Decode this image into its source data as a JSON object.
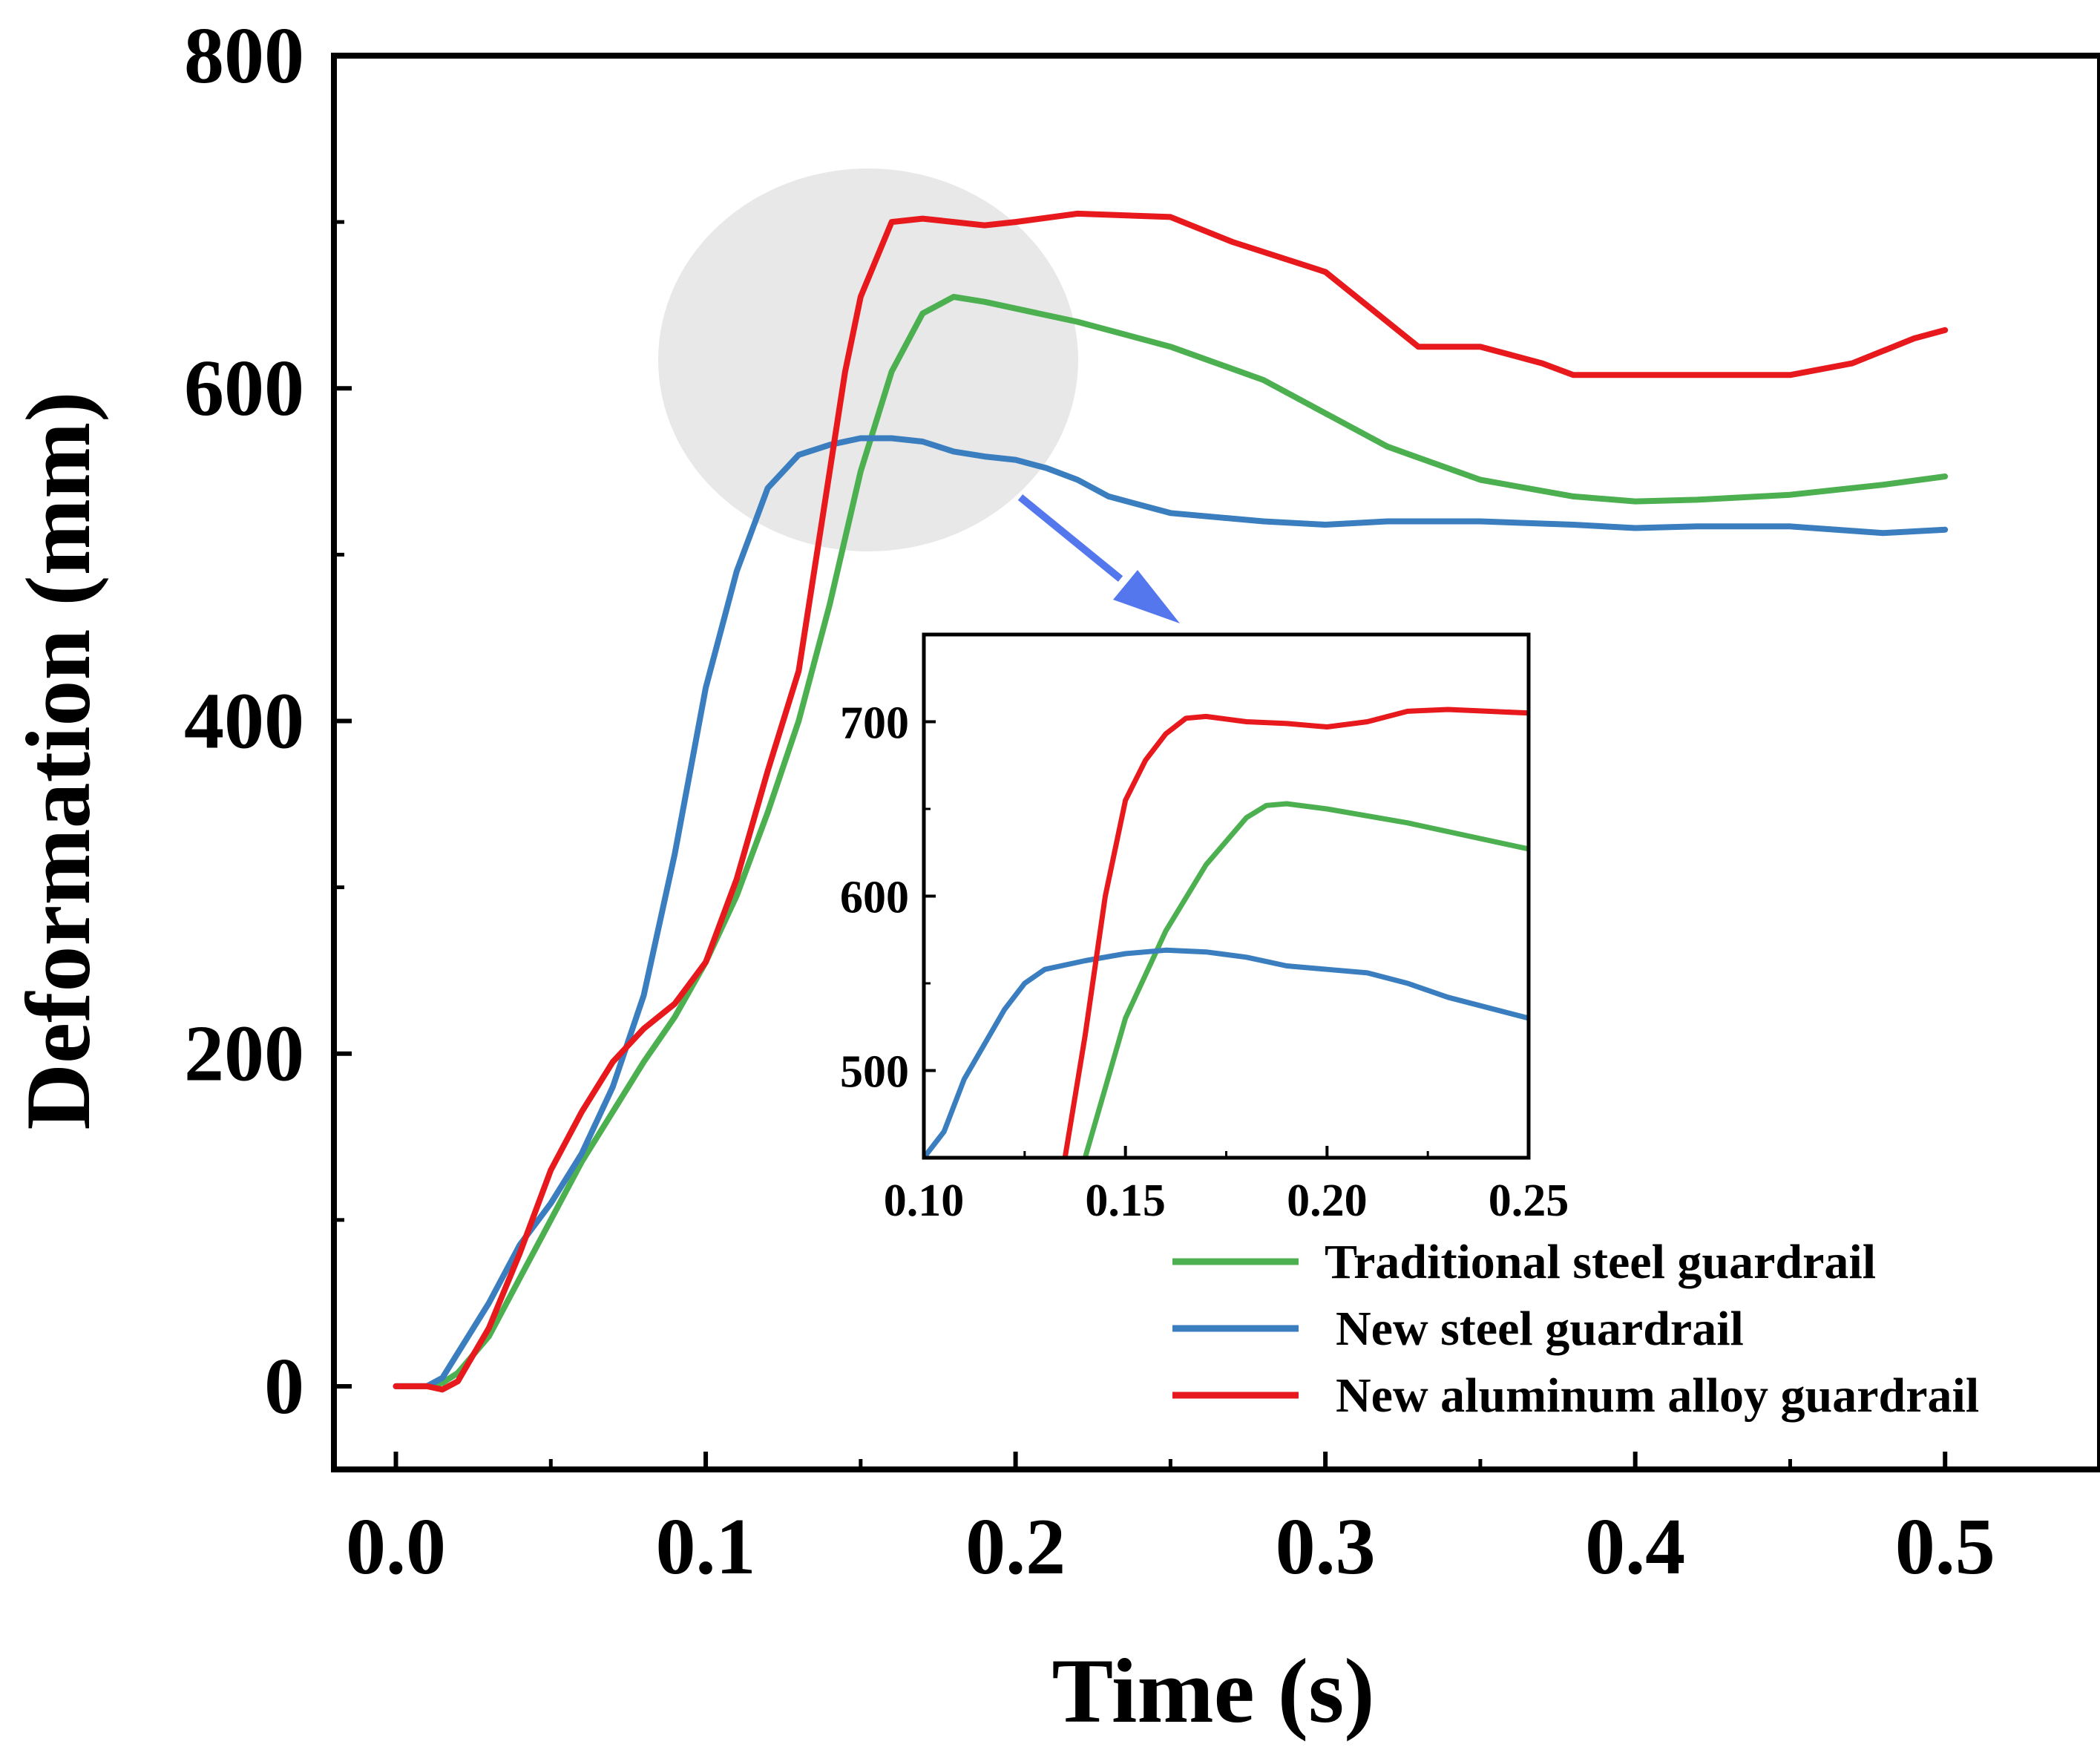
{
  "chart_data": [
    {
      "type": "line",
      "role": "main",
      "title": "",
      "xlabel": "Time (s)",
      "ylabel": "Deformation (mm)",
      "xlim": [
        -0.02,
        0.55
      ],
      "ylim": [
        -50,
        800
      ],
      "xticks": [
        0.0,
        0.1,
        0.2,
        0.3,
        0.4,
        0.5
      ],
      "xtick_labels": [
        "0.0",
        "0.1",
        "0.2",
        "0.3",
        "0.4",
        "0.5"
      ],
      "yticks": [
        0,
        200,
        400,
        600,
        800
      ],
      "ytick_labels": [
        "0",
        "200",
        "400",
        "600",
        "800"
      ],
      "grid": false,
      "legend_position": "bottom-right",
      "series": [
        {
          "name": "Traditional steel guardrail",
          "color": "#4caf50",
          "x": [
            0,
            0.01,
            0.015,
            0.02,
            0.03,
            0.04,
            0.05,
            0.06,
            0.07,
            0.08,
            0.09,
            0.1,
            0.11,
            0.12,
            0.13,
            0.14,
            0.15,
            0.16,
            0.17,
            0.18,
            0.19,
            0.2,
            0.22,
            0.25,
            0.28,
            0.3,
            0.32,
            0.35,
            0.38,
            0.4,
            0.42,
            0.45,
            0.48,
            0.5
          ],
          "values": [
            0,
            0,
            2,
            8,
            30,
            65,
            100,
            135,
            165,
            195,
            222,
            255,
            295,
            345,
            400,
            470,
            550,
            610,
            645,
            655,
            652,
            648,
            640,
            625,
            605,
            585,
            565,
            545,
            535,
            532,
            533,
            536,
            542,
            547
          ]
        },
        {
          "name": "New steel guardrail",
          "color": "#3a7ebf",
          "x": [
            0,
            0.01,
            0.015,
            0.02,
            0.03,
            0.04,
            0.05,
            0.06,
            0.07,
            0.08,
            0.09,
            0.1,
            0.11,
            0.12,
            0.13,
            0.14,
            0.15,
            0.16,
            0.17,
            0.18,
            0.19,
            0.2,
            0.21,
            0.22,
            0.23,
            0.25,
            0.28,
            0.3,
            0.32,
            0.35,
            0.38,
            0.4,
            0.42,
            0.45,
            0.48,
            0.5
          ],
          "values": [
            0,
            0,
            5,
            20,
            50,
            85,
            110,
            140,
            180,
            235,
            320,
            420,
            490,
            540,
            560,
            566,
            570,
            570,
            568,
            562,
            559,
            557,
            552,
            545,
            535,
            525,
            520,
            518,
            520,
            520,
            518,
            516,
            517,
            517,
            513,
            515
          ]
        },
        {
          "name": "New aluminum alloy guardrail",
          "color": "#e8191c",
          "x": [
            0,
            0.01,
            0.015,
            0.02,
            0.03,
            0.04,
            0.05,
            0.06,
            0.07,
            0.08,
            0.09,
            0.1,
            0.11,
            0.12,
            0.13,
            0.14,
            0.145,
            0.15,
            0.16,
            0.17,
            0.18,
            0.19,
            0.2,
            0.22,
            0.25,
            0.27,
            0.3,
            0.31,
            0.33,
            0.35,
            0.37,
            0.38,
            0.4,
            0.42,
            0.45,
            0.47,
            0.49,
            0.5
          ],
          "values": [
            0,
            0,
            -2,
            3,
            35,
            80,
            130,
            165,
            195,
            215,
            230,
            255,
            305,
            370,
            430,
            550,
            610,
            655,
            700,
            702,
            700,
            698,
            700,
            705,
            703,
            688,
            670,
            655,
            625,
            625,
            615,
            608,
            608,
            608,
            608,
            615,
            630,
            635
          ]
        }
      ]
    },
    {
      "type": "line",
      "role": "inset",
      "title": "",
      "xlabel": "",
      "ylabel": "",
      "xlim": [
        0.1,
        0.25
      ],
      "ylim": [
        450,
        750
      ],
      "xticks": [
        0.1,
        0.15,
        0.2,
        0.25
      ],
      "xtick_labels": [
        "0.10",
        "0.15",
        "0.20",
        "0.25"
      ],
      "yticks": [
        500,
        600,
        700
      ],
      "ytick_labels": [
        "500",
        "600",
        "700"
      ],
      "grid": false,
      "series": [
        {
          "name": "Traditional steel guardrail",
          "color": "#4caf50",
          "x": [
            0.14,
            0.145,
            0.15,
            0.16,
            0.17,
            0.18,
            0.185,
            0.19,
            0.2,
            0.22,
            0.25
          ],
          "values": [
            450,
            490,
            530,
            580,
            618,
            645,
            652,
            653,
            650,
            642,
            627
          ]
        },
        {
          "name": "New steel guardrail",
          "color": "#3a7ebf",
          "x": [
            0.1,
            0.105,
            0.11,
            0.12,
            0.125,
            0.13,
            0.14,
            0.15,
            0.16,
            0.17,
            0.18,
            0.19,
            0.2,
            0.21,
            0.22,
            0.23,
            0.25
          ],
          "values": [
            450,
            465,
            495,
            535,
            550,
            558,
            563,
            567,
            569,
            568,
            565,
            560,
            558,
            556,
            550,
            542,
            530
          ]
        },
        {
          "name": "New aluminum alloy guardrail",
          "color": "#e8191c",
          "x": [
            0.135,
            0.14,
            0.145,
            0.15,
            0.155,
            0.16,
            0.165,
            0.17,
            0.18,
            0.19,
            0.2,
            0.21,
            0.22,
            0.23,
            0.24,
            0.25
          ],
          "values": [
            450,
            520,
            600,
            655,
            678,
            693,
            702,
            703,
            700,
            699,
            697,
            700,
            706,
            707,
            706,
            705
          ]
        }
      ]
    }
  ]
}
